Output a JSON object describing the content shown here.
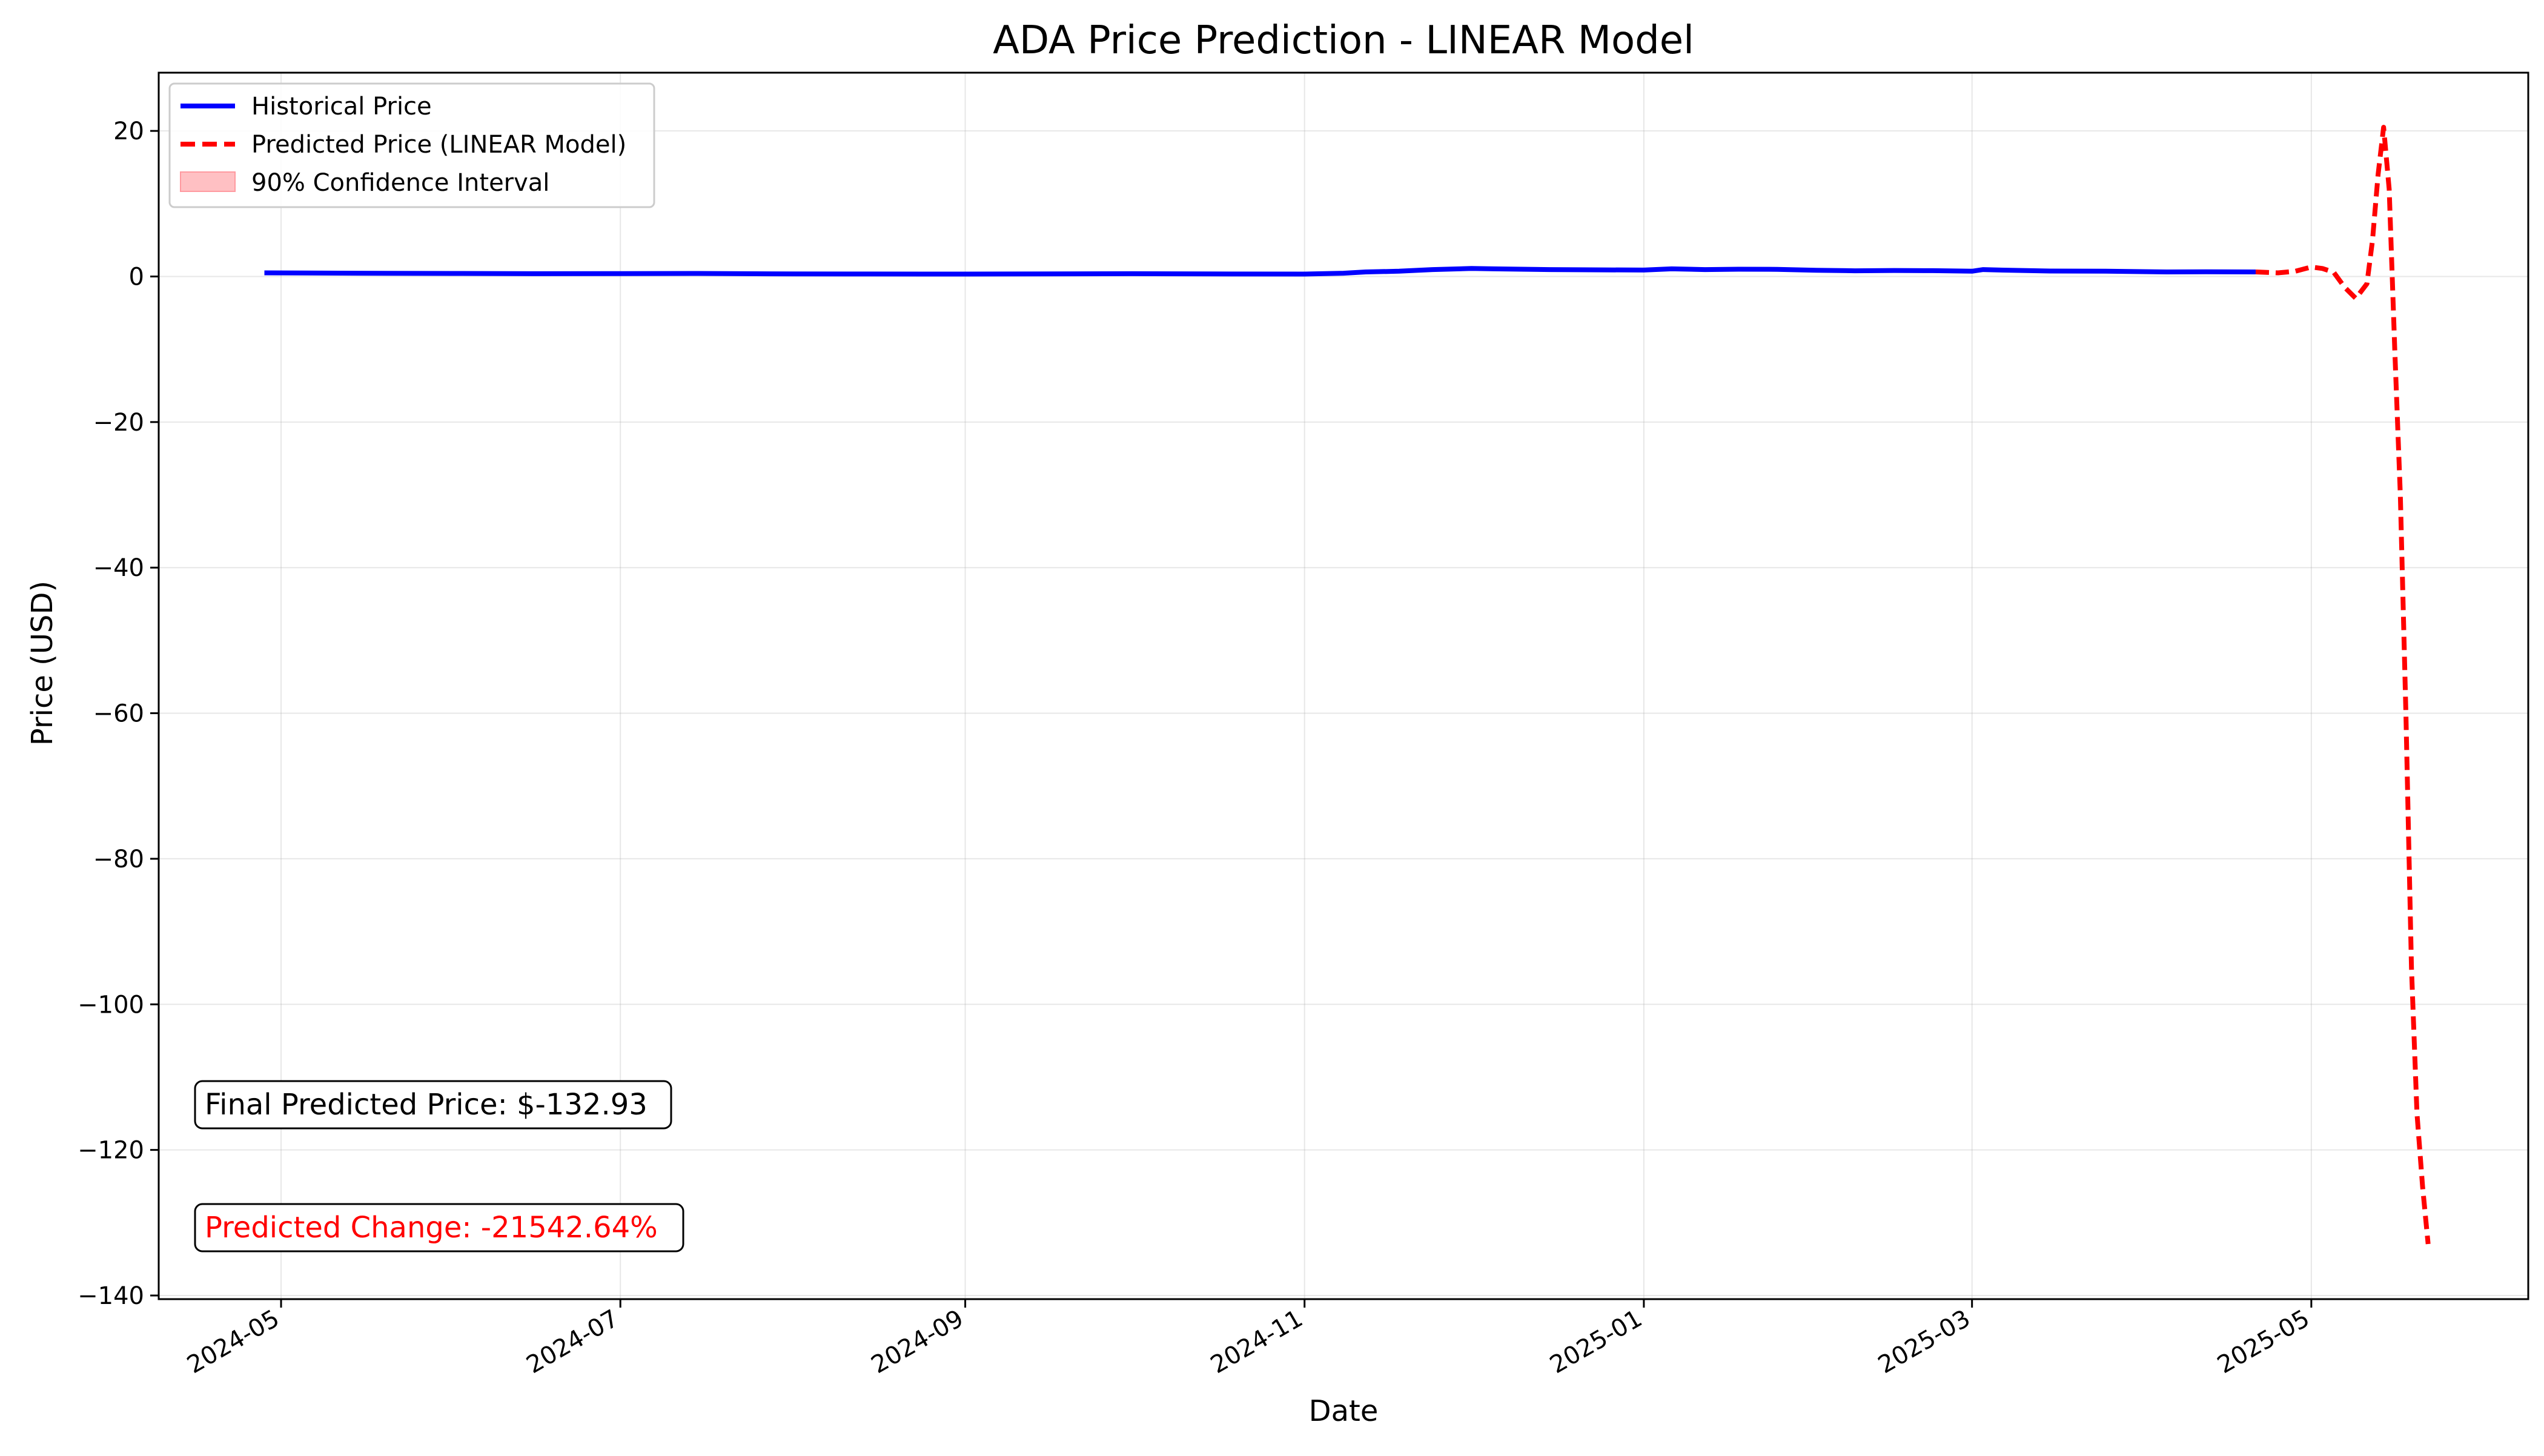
{
  "chart_data": {
    "type": "line",
    "title": "ADA Price Prediction - LINEAR Model",
    "xlabel": "Date",
    "ylabel": "Price (USD)",
    "xlim": [
      "2024-04-09",
      "2025-06-09"
    ],
    "ylim": [
      -140.5,
      28
    ],
    "yticks": [
      20,
      0,
      -20,
      -40,
      -60,
      -80,
      -100,
      -120,
      -140
    ],
    "xticks": [
      "2024-05-01",
      "2024-07-01",
      "2024-09-01",
      "2024-11-01",
      "2025-01-01",
      "2025-03-01",
      "2025-05-01"
    ],
    "xtick_labels": [
      "2024-05",
      "2024-07",
      "2024-09",
      "2024-11",
      "2025-01",
      "2025-03",
      "2025-05"
    ],
    "grid": true,
    "legend_position": "top-left",
    "series": [
      {
        "name": "Historical Price",
        "color": "#0000ff",
        "style": "solid",
        "x": [
          "2024-04-28",
          "2024-05-15",
          "2024-06-01",
          "2024-06-15",
          "2024-07-01",
          "2024-07-15",
          "2024-08-01",
          "2024-08-15",
          "2024-09-01",
          "2024-09-15",
          "2024-10-01",
          "2024-10-15",
          "2024-11-01",
          "2024-11-08",
          "2024-11-12",
          "2024-11-18",
          "2024-11-24",
          "2024-12-01",
          "2024-12-05",
          "2024-12-10",
          "2024-12-15",
          "2024-12-20",
          "2025-01-01",
          "2025-01-06",
          "2025-01-12",
          "2025-01-18",
          "2025-01-25",
          "2025-02-01",
          "2025-02-08",
          "2025-02-15",
          "2025-02-22",
          "2025-03-01",
          "2025-03-03",
          "2025-03-08",
          "2025-03-15",
          "2025-03-25",
          "2025-04-05",
          "2025-04-12",
          "2025-04-21"
        ],
        "y": [
          0.5,
          0.45,
          0.42,
          0.38,
          0.4,
          0.42,
          0.35,
          0.34,
          0.33,
          0.35,
          0.38,
          0.35,
          0.33,
          0.45,
          0.62,
          0.72,
          0.95,
          1.1,
          1.05,
          1.0,
          0.95,
          0.92,
          0.88,
          1.05,
          0.95,
          1.0,
          0.98,
          0.85,
          0.78,
          0.82,
          0.8,
          0.72,
          0.95,
          0.85,
          0.75,
          0.72,
          0.62,
          0.65,
          0.62
        ]
      },
      {
        "name": "Predicted Price (LINEAR Model)",
        "color": "#ff0000",
        "style": "dashed",
        "x": [
          "2025-04-21",
          "2025-04-25",
          "2025-04-28",
          "2025-05-01",
          "2025-05-03",
          "2025-05-05",
          "2025-05-07",
          "2025-05-09",
          "2025-05-11",
          "2025-05-12",
          "2025-05-13",
          "2025-05-14",
          "2025-05-15",
          "2025-05-16",
          "2025-05-17",
          "2025-05-18",
          "2025-05-19",
          "2025-05-20",
          "2025-05-21",
          "2025-05-22"
        ],
        "y": [
          0.62,
          0.5,
          0.7,
          1.3,
          1.1,
          0.6,
          -1.5,
          -3.0,
          -1.0,
          5,
          14,
          20.5,
          12,
          -10,
          -30,
          -60,
          -95,
          -115,
          -125,
          -132.93
        ]
      }
    ],
    "confidence_interval": {
      "name": "90% Confidence Interval",
      "color": "#ffc0c3"
    },
    "annotations": [
      {
        "text": "Final Predicted Price: $-132.93",
        "color": "#000000"
      },
      {
        "text": "Predicted Change: -21542.64%",
        "color": "#ff0000"
      }
    ]
  }
}
